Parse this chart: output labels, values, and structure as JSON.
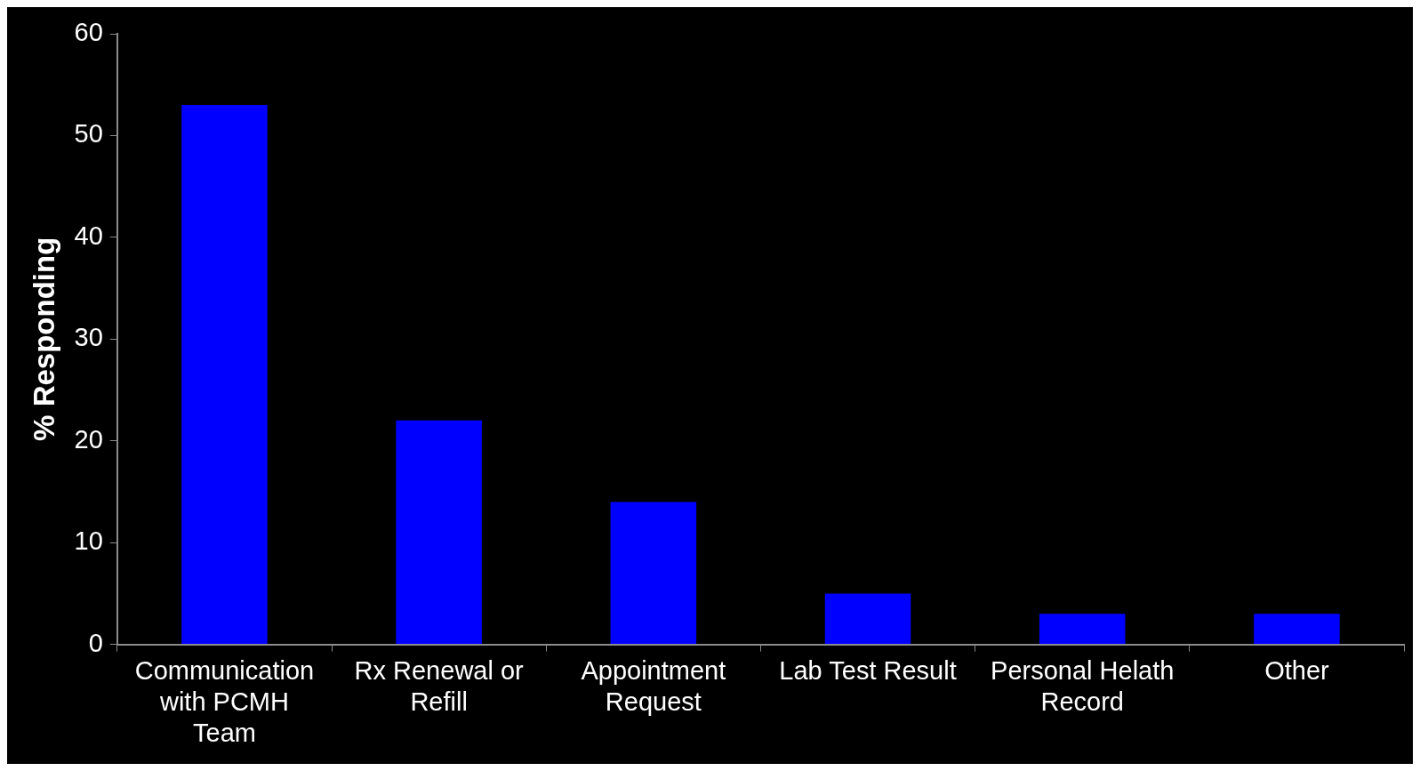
{
  "chart_data": {
    "type": "bar",
    "ylabel": "% Responding",
    "categories": [
      "Communication with PCMH Team",
      "Rx Renewal or Refill",
      "Appointment Request",
      "Lab Test Result",
      "Personal Helath Record",
      "Other"
    ],
    "values": [
      53,
      22,
      14,
      5,
      3,
      3
    ],
    "color": "#0000ff",
    "ylim": [
      0,
      60
    ],
    "yticks": [
      0,
      10,
      20,
      30,
      40,
      50,
      60
    ],
    "grid": false,
    "legend": false
  }
}
